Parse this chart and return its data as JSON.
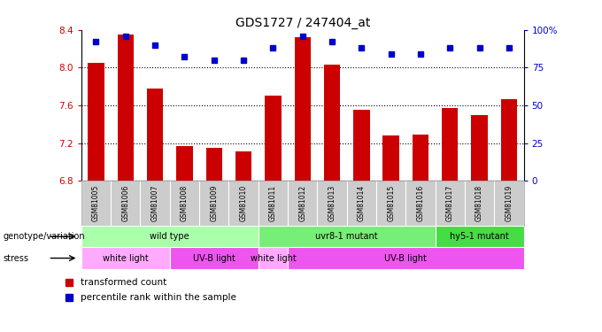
{
  "title": "GDS1727 / 247404_at",
  "samples": [
    "GSM81005",
    "GSM81006",
    "GSM81007",
    "GSM81008",
    "GSM81009",
    "GSM81010",
    "GSM81011",
    "GSM81012",
    "GSM81013",
    "GSM81014",
    "GSM81015",
    "GSM81016",
    "GSM81017",
    "GSM81018",
    "GSM81019"
  ],
  "bar_values": [
    8.05,
    8.35,
    7.78,
    7.17,
    7.15,
    7.11,
    7.7,
    8.32,
    8.03,
    7.55,
    7.28,
    7.29,
    7.57,
    7.5,
    7.67
  ],
  "dot_values": [
    92,
    96,
    90,
    82,
    80,
    80,
    88,
    96,
    92,
    88,
    84,
    84,
    88,
    88,
    88
  ],
  "bar_color": "#cc0000",
  "dot_color": "#0000cc",
  "ylim_left": [
    6.8,
    8.4
  ],
  "ylim_right": [
    0,
    100
  ],
  "yticks_left": [
    6.8,
    7.2,
    7.6,
    8.0,
    8.4
  ],
  "yticks_right": [
    0,
    25,
    50,
    75,
    100
  ],
  "ytick_right_labels": [
    "0",
    "25",
    "50",
    "75",
    "100%"
  ],
  "grid_values": [
    8.0,
    7.6,
    7.2
  ],
  "genotype_groups": [
    {
      "label": "wild type",
      "start": 0,
      "end": 6,
      "color": "#aaffaa"
    },
    {
      "label": "uvr8-1 mutant",
      "start": 6,
      "end": 12,
      "color": "#77ee77"
    },
    {
      "label": "hy5-1 mutant",
      "start": 12,
      "end": 15,
      "color": "#44dd44"
    }
  ],
  "stress_groups": [
    {
      "label": "white light",
      "start": 0,
      "end": 3,
      "color": "#ffaaff"
    },
    {
      "label": "UV-B light",
      "start": 3,
      "end": 6,
      "color": "#ee55ee"
    },
    {
      "label": "white light",
      "start": 6,
      "end": 7,
      "color": "#ffaaff"
    },
    {
      "label": "UV-B light",
      "start": 7,
      "end": 15,
      "color": "#ee55ee"
    }
  ],
  "legend_bar_label": "transformed count",
  "legend_dot_label": "percentile rank within the sample",
  "genotype_label": "genotype/variation",
  "stress_label": "stress",
  "bar_width": 0.55,
  "base_value": 6.8,
  "sample_bg_color": "#cccccc",
  "sample_border_color": "#999999"
}
